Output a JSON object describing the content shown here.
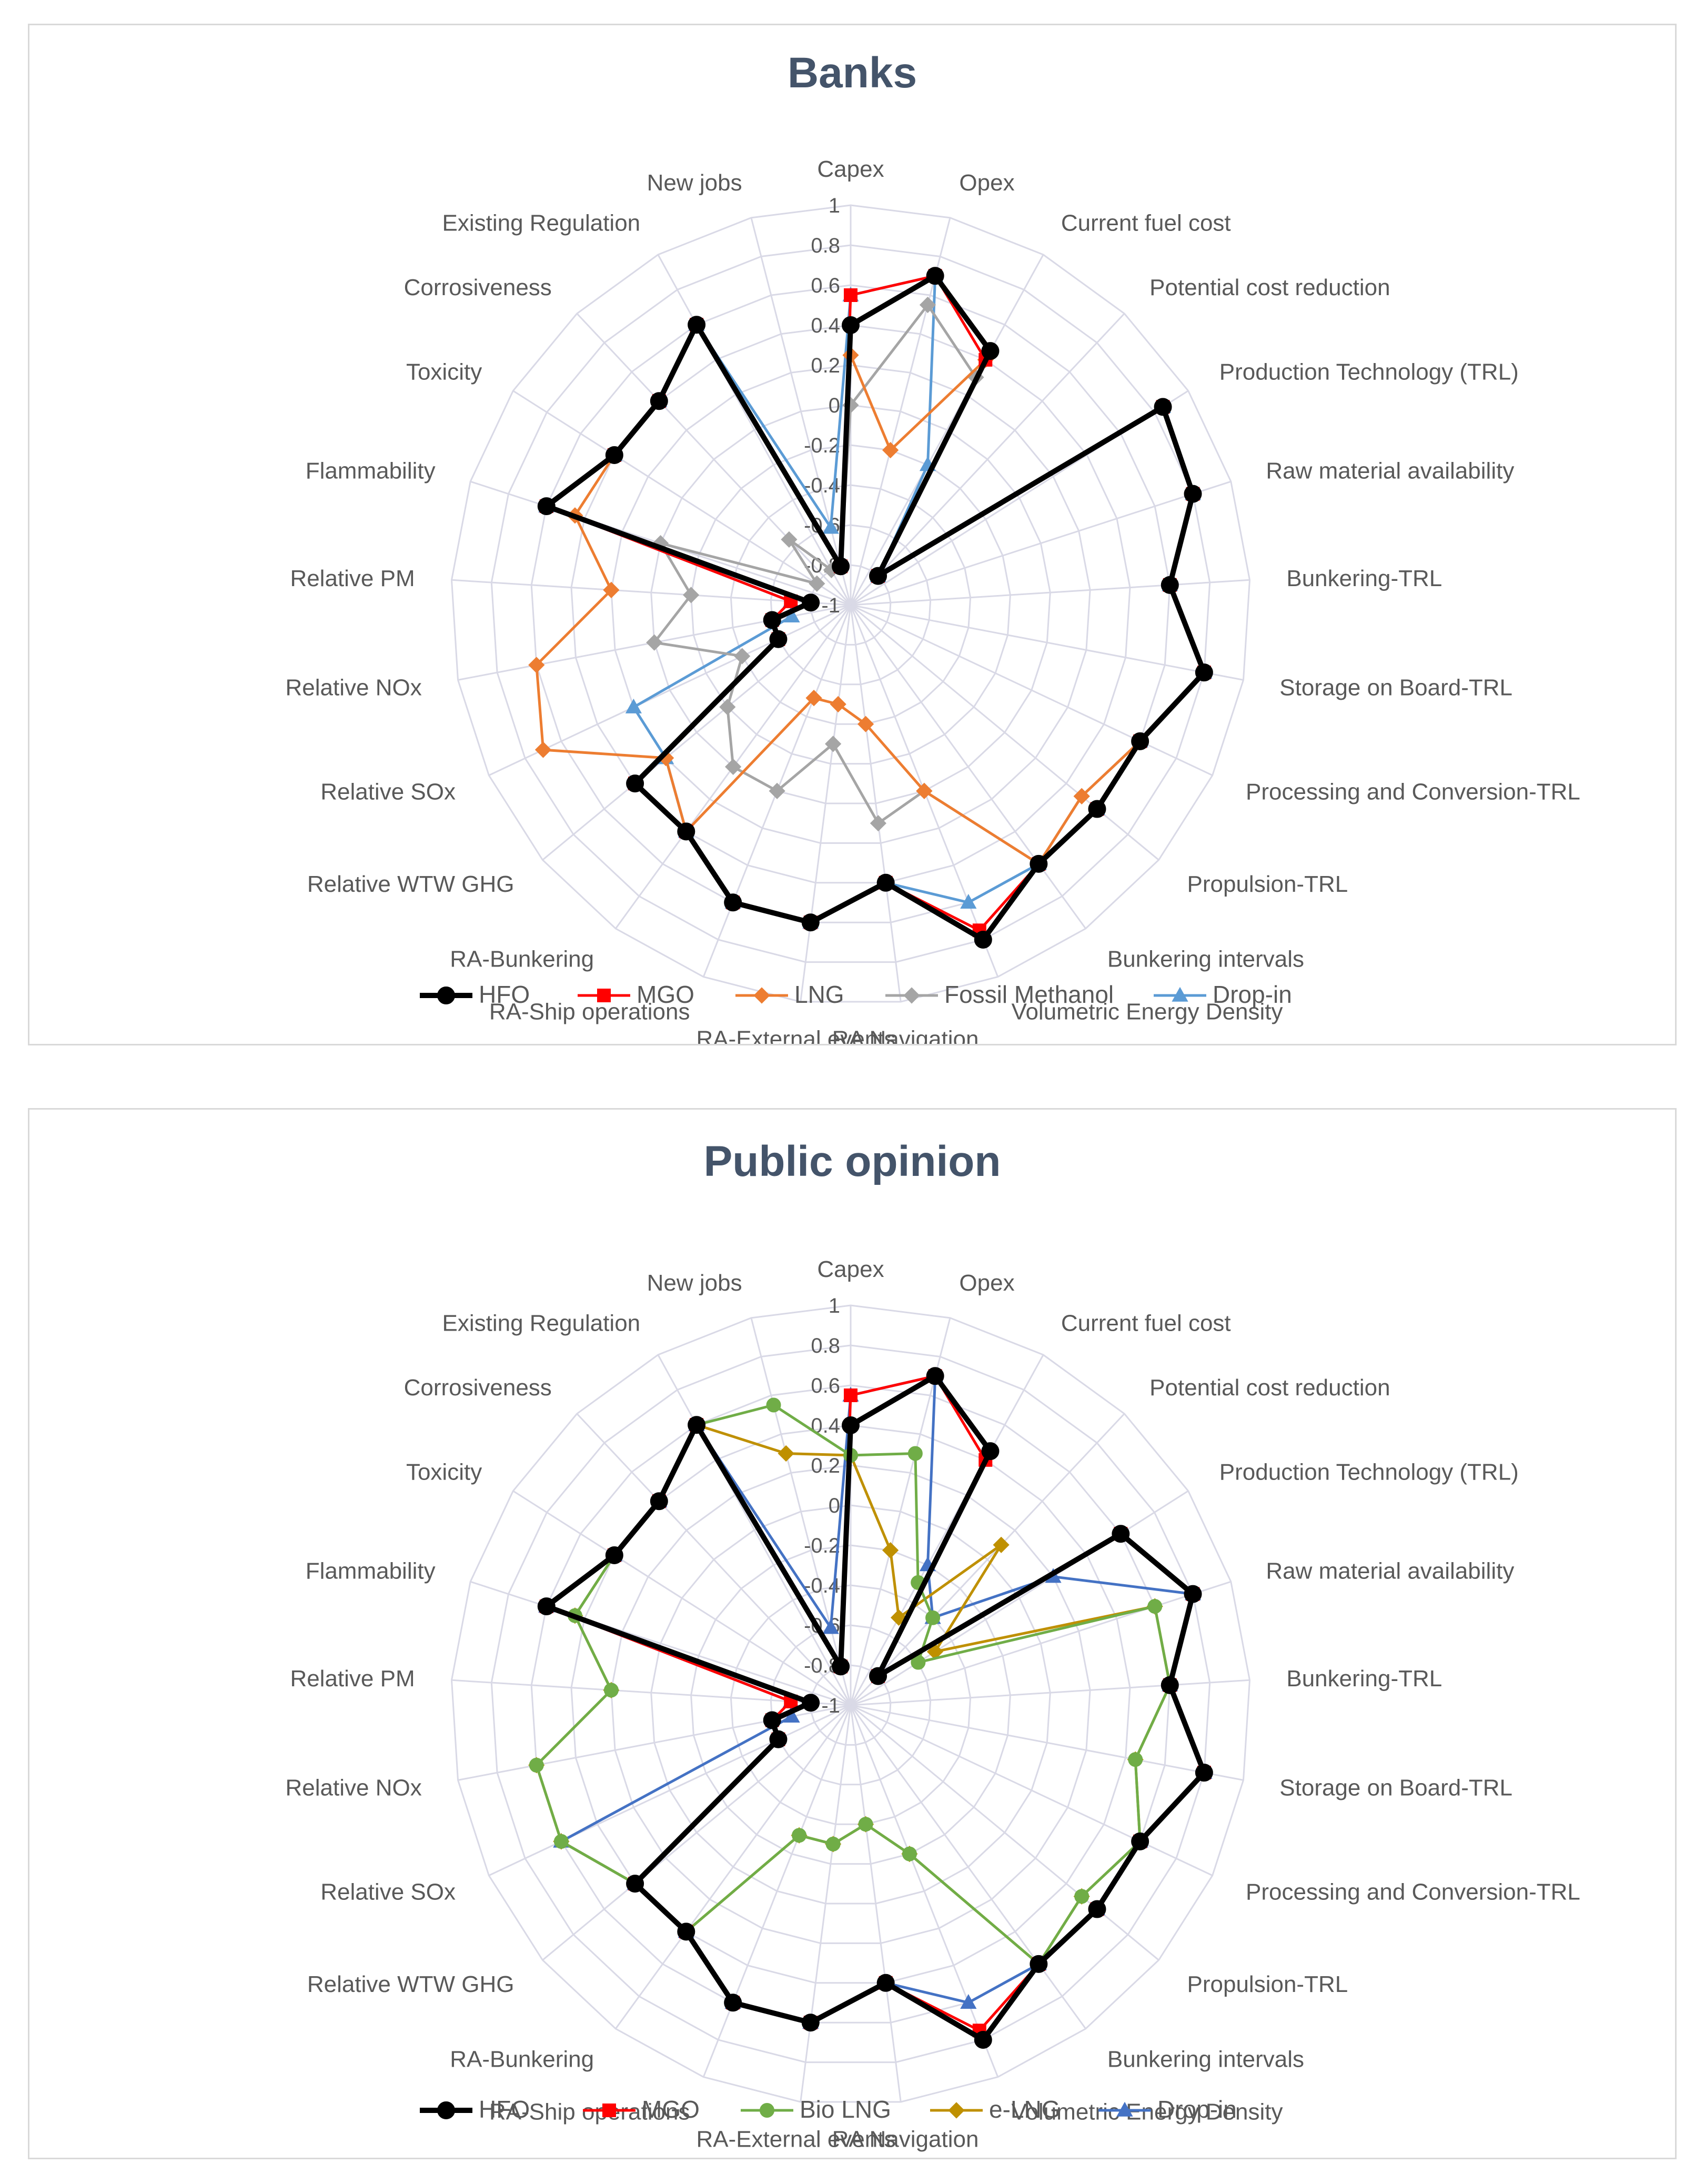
{
  "colors": {
    "HFO": "#000000",
    "MGO": "#ff0000",
    "LNG": "#ed7d31",
    "Fossil Methanol": "#a5a5a5",
    "Drop-in": "#5b9bd5",
    "Bio LNG": "#70ad47",
    "e-LNG": "#bf9000",
    "Drop-in (public)": "#4472c4",
    "grid": "#d9d9e6",
    "title": "#44546a",
    "text": "#595959"
  },
  "categories": [
    "Capex",
    "Opex",
    "Current fuel cost",
    "Potential cost reduction",
    "Production Technology (TRL)",
    "Raw material availability",
    "Bunkering-TRL",
    "Storage on Board-TRL",
    "Processing and Conversion-TRL",
    "Propulsion-TRL",
    "Bunkering intervals",
    "Volumetric Energy Density",
    "RA Navigation",
    "RA-External events",
    "RA-Ship operations",
    "RA-Bunkering",
    "Relative WTW GHG",
    "Relative SOx",
    "Relative NOx",
    "Relative PM",
    "Flammability",
    "Toxicity",
    "Corrosiveness",
    "Existing Regulation",
    "New jobs"
  ],
  "ticks": [
    "-1",
    "-0.8",
    "-0.6",
    "-0.4",
    "-0.2",
    "0",
    "0.2",
    "0.4",
    "0.6",
    "0.8",
    "1"
  ],
  "chart_data": [
    {
      "type": "radar",
      "title": "Banks",
      "rlim": [
        -1,
        1
      ],
      "grid": true,
      "legend_position": "bottom",
      "categories": [
        "Capex",
        "Opex",
        "Current fuel cost",
        "Potential cost reduction",
        "Production Technology (TRL)",
        "Raw material availability",
        "Bunkering-TRL",
        "Storage on Board-TRL",
        "Processing and Conversion-TRL",
        "Propulsion-TRL",
        "Bunkering intervals",
        "Volumetric Energy Density",
        "RA Navigation",
        "RA-External events",
        "RA-Ship operations",
        "RA-Bunkering",
        "Relative WTW GHG",
        "Relative SOx",
        "Relative NOx",
        "Relative PM",
        "Flammability",
        "Toxicity",
        "Corrosiveness",
        "Existing Regulation",
        "New jobs"
      ],
      "series": [
        {
          "name": "HFO",
          "marker": "circle",
          "values": [
            0.4,
            0.7,
            0.45,
            -0.8,
            0.85,
            0.8,
            0.6,
            0.8,
            0.6,
            0.6,
            0.6,
            0.8,
            0.4,
            0.6,
            0.6,
            0.4,
            0.4,
            -0.6,
            -0.6,
            -0.8,
            0.6,
            0.4,
            0.4,
            0.6,
            -0.8
          ]
        },
        {
          "name": "MGO",
          "marker": "square",
          "values": [
            0.55,
            0.7,
            0.4,
            -0.8,
            0.85,
            0.8,
            0.6,
            0.8,
            0.6,
            0.6,
            0.6,
            0.75,
            0.4,
            0.6,
            0.6,
            0.4,
            0.4,
            -0.6,
            -0.6,
            -0.7,
            0.6,
            0.4,
            0.4,
            0.6,
            -0.8
          ]
        },
        {
          "name": "LNG",
          "marker": "diamond",
          "values": [
            0.25,
            -0.2,
            0.4,
            -0.8,
            0.85,
            0.8,
            0.6,
            0.8,
            0.6,
            0.5,
            0.6,
            0.0,
            -0.4,
            -0.5,
            -0.5,
            0.4,
            0.2,
            0.7,
            0.6,
            0.2,
            0.45,
            0.4,
            0.4,
            0.6,
            -0.8
          ]
        },
        {
          "name": "Fossil Methanol",
          "marker": "diamond",
          "values": [
            0.0,
            0.55,
            0.3,
            -0.8,
            0.85,
            0.8,
            0.6,
            0.8,
            0.6,
            0.5,
            0.6,
            0.0,
            0.1,
            -0.3,
            0.0,
            0.0,
            -0.2,
            -0.4,
            0.0,
            -0.2,
            0.0,
            -0.8,
            -0.55,
            -0.8,
            -0.8
          ]
        },
        {
          "name": "Drop-in",
          "marker": "triangle",
          "values": [
            0.55,
            0.7,
            -0.2,
            -0.8,
            0.85,
            0.8,
            0.6,
            0.8,
            0.6,
            0.6,
            0.6,
            0.6,
            0.4,
            0.6,
            0.6,
            0.4,
            0.2,
            0.2,
            -0.7,
            -0.7,
            0.6,
            0.4,
            0.4,
            0.6,
            -0.6
          ]
        }
      ]
    },
    {
      "type": "radar",
      "title": "Public opinion",
      "rlim": [
        -1,
        1
      ],
      "grid": true,
      "legend_position": "bottom",
      "categories": [
        "Capex",
        "Opex",
        "Current fuel cost",
        "Potential cost reduction",
        "Production Technology (TRL)",
        "Raw material availability",
        "Bunkering-TRL",
        "Storage on Board-TRL",
        "Processing and Conversion-TRL",
        "Propulsion-TRL",
        "Bunkering intervals",
        "Volumetric Energy Density",
        "RA Navigation",
        "RA-External events",
        "RA-Ship operations",
        "RA-Bunkering",
        "Relative WTW GHG",
        "Relative SOx",
        "Relative NOx",
        "Relative PM",
        "Flammability",
        "Toxicity",
        "Corrosiveness",
        "Existing Regulation",
        "New jobs"
      ],
      "series": [
        {
          "name": "HFO",
          "marker": "circle",
          "values": [
            0.4,
            0.7,
            0.45,
            -0.8,
            0.6,
            0.8,
            0.6,
            0.8,
            0.6,
            0.6,
            0.6,
            0.8,
            0.4,
            0.6,
            0.6,
            0.4,
            0.4,
            -0.6,
            -0.6,
            -0.8,
            0.6,
            0.4,
            0.4,
            0.6,
            -0.8
          ]
        },
        {
          "name": "MGO",
          "marker": "square",
          "values": [
            0.55,
            0.7,
            0.4,
            -0.8,
            0.6,
            0.8,
            0.6,
            0.8,
            0.6,
            0.6,
            0.6,
            0.75,
            0.4,
            0.6,
            0.6,
            0.4,
            0.4,
            -0.6,
            -0.6,
            -0.7,
            0.6,
            0.4,
            0.4,
            0.6,
            -0.8
          ]
        },
        {
          "name": "Bio LNG",
          "marker": "circle",
          "values": [
            0.25,
            0.3,
            -0.3,
            -0.4,
            -0.6,
            0.6,
            0.6,
            0.45,
            0.6,
            0.5,
            0.6,
            -0.2,
            -0.4,
            -0.3,
            -0.3,
            0.4,
            0.4,
            0.6,
            0.6,
            0.2,
            0.45,
            0.4,
            0.4,
            0.6,
            0.55
          ]
        },
        {
          "name": "e-LNG",
          "marker": "diamond",
          "values": [
            0.25,
            -0.2,
            -0.5,
            0.1,
            -0.5,
            0.6,
            0.6,
            0.45,
            0.6,
            0.5,
            0.6,
            -0.2,
            -0.4,
            -0.3,
            -0.3,
            0.4,
            0.4,
            0.6,
            0.6,
            0.2,
            0.45,
            0.4,
            0.4,
            0.6,
            0.3
          ]
        },
        {
          "name": "Drop-in",
          "marker": "triangle",
          "values": [
            0.55,
            0.7,
            -0.2,
            -0.4,
            0.2,
            0.8,
            0.6,
            0.8,
            0.6,
            0.6,
            0.6,
            0.6,
            0.4,
            0.6,
            0.6,
            0.4,
            0.4,
            0.6,
            -0.7,
            -0.7,
            0.6,
            0.4,
            0.4,
            0.6,
            -0.6
          ]
        }
      ]
    }
  ],
  "legend_1": [
    "HFO",
    "MGO",
    "LNG",
    "Fossil Methanol",
    "Drop-in"
  ],
  "legend_2": [
    "HFO",
    "MGO",
    "Bio LNG",
    "e-LNG",
    "Drop-in"
  ]
}
